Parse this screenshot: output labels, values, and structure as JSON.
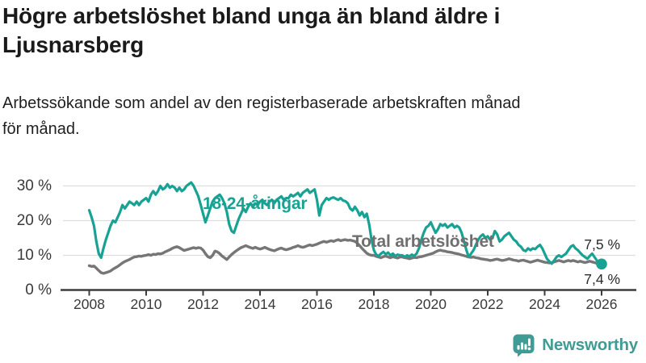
{
  "header": {
    "title_lines": [
      "Högre arbetslöshet bland unga än bland äldre i",
      "Ljusnarsberg"
    ],
    "subtitle_lines": [
      "Arbetssökande som andel av den registerbaserade arbetskraften månad",
      "för månad."
    ]
  },
  "annotations": {
    "youth_label": "18-24-åringar",
    "total_label": "Total arbetslöshet",
    "youth_end_value": "7,5 %",
    "total_end_value": "7,4 %"
  },
  "footer": {
    "brand": "Newsworthy",
    "logo_icon": "bar-chart-speech-bubble-icon",
    "brand_color": "#3f9c95"
  },
  "chart_data": {
    "type": "line",
    "unit": "%",
    "x_start_year": 2008,
    "x_end_year": 2026,
    "points_per_year": 12,
    "x_tick_labels": [
      "2008",
      "2010",
      "2012",
      "2014",
      "2016",
      "2018",
      "2020",
      "2022",
      "2024",
      "2026"
    ],
    "y_tick_labels": [
      "0 %",
      "10 %",
      "20 %",
      "30 %"
    ],
    "ylim": [
      0,
      32
    ],
    "grid": "horizontal",
    "series": [
      {
        "name": "18-24-åringar",
        "color": "#17a293",
        "end_label": "7,5 %",
        "end_dot": true,
        "values": [
          23.0,
          21.0,
          18.5,
          14.0,
          10.5,
          9.3,
          12.0,
          14.5,
          16.5,
          18.5,
          20.0,
          19.5,
          21.0,
          22.5,
          24.5,
          23.5,
          24.5,
          25.5,
          25.0,
          24.5,
          25.5,
          24.5,
          25.5,
          26.0,
          26.5,
          25.5,
          27.5,
          28.5,
          27.5,
          28.5,
          30.0,
          29.0,
          29.5,
          30.5,
          29.5,
          30.0,
          29.5,
          28.5,
          29.5,
          28.5,
          29.0,
          30.0,
          30.5,
          31.0,
          30.0,
          28.5,
          27.0,
          24.5,
          22.0,
          19.5,
          21.5,
          23.5,
          25.5,
          26.5,
          27.0,
          27.5,
          26.5,
          25.0,
          22.5,
          19.0,
          17.0,
          16.5,
          18.5,
          20.5,
          22.0,
          23.5,
          22.5,
          24.0,
          25.0,
          24.0,
          25.0,
          24.5,
          25.5,
          26.0,
          25.0,
          24.5,
          25.5,
          26.0,
          25.0,
          26.0,
          26.5,
          27.0,
          26.0,
          26.5,
          26.5,
          27.5,
          27.0,
          27.5,
          28.0,
          27.0,
          28.0,
          28.5,
          29.0,
          28.0,
          28.5,
          29.0,
          26.0,
          21.5,
          24.5,
          25.5,
          26.5,
          26.0,
          26.5,
          26.7,
          26.3,
          26.0,
          26.5,
          25.8,
          25.6,
          25.0,
          23.5,
          22.9,
          24.0,
          23.0,
          21.5,
          22.5,
          21.0,
          22.0,
          19.0,
          14.5,
          11.5,
          10.2,
          9.8,
          10.5,
          11.0,
          10.3,
          10.8,
          10.0,
          10.5,
          9.8,
          10.2,
          10.0,
          10.0,
          9.5,
          10.0,
          9.7,
          10.2,
          9.8,
          10.5,
          12.0,
          14.5,
          16.5,
          18.0,
          18.5,
          19.5,
          18.0,
          16.5,
          17.5,
          19.0,
          18.5,
          19.0,
          18.0,
          18.5,
          19.0,
          18.0,
          18.5,
          18.0,
          16.5,
          14.0,
          11.5,
          9.5,
          10.5,
          11.5,
          13.0,
          14.5,
          15.5,
          16.0,
          15.0,
          15.5,
          14.5,
          15.0,
          17.0,
          16.0,
          14.0,
          14.5,
          15.5,
          16.0,
          16.5,
          15.5,
          14.5,
          14.0,
          13.0,
          12.5,
          11.5,
          11.2,
          12.0,
          11.5,
          12.0,
          11.8,
          12.5,
          13.0,
          12.0,
          10.5,
          9.0,
          8.2,
          7.6,
          8.5,
          9.5,
          10.0,
          9.5,
          10.0,
          10.5,
          11.5,
          12.5,
          12.9,
          12.0,
          11.5,
          10.7,
          10.0,
          9.5,
          9.0,
          9.8,
          10.5,
          9.5,
          8.5,
          8.0,
          7.5
        ]
      },
      {
        "name": "Total arbetslöshet",
        "color": "#767676",
        "end_label": "7,4 %",
        "end_dot": false,
        "values": [
          7.0,
          6.8,
          6.9,
          6.3,
          5.6,
          5.0,
          4.8,
          5.0,
          5.2,
          5.5,
          6.0,
          6.4,
          6.8,
          7.3,
          7.8,
          8.2,
          8.5,
          8.8,
          9.2,
          9.5,
          9.6,
          9.8,
          9.7,
          9.9,
          10.0,
          10.2,
          10.0,
          10.3,
          10.2,
          10.5,
          10.4,
          10.6,
          11.0,
          11.3,
          11.6,
          12.0,
          12.3,
          12.5,
          12.2,
          11.8,
          11.4,
          11.6,
          11.8,
          12.0,
          12.2,
          12.0,
          12.2,
          12.1,
          11.5,
          10.5,
          9.6,
          9.3,
          10.0,
          11.2,
          11.0,
          10.5,
          9.8,
          9.3,
          8.8,
          9.5,
          10.2,
          10.8,
          11.3,
          11.8,
          12.2,
          12.5,
          12.8,
          12.5,
          12.2,
          12.0,
          12.3,
          12.0,
          11.8,
          12.0,
          12.3,
          12.0,
          11.7,
          11.5,
          11.3,
          11.6,
          11.9,
          12.1,
          11.8,
          11.6,
          11.8,
          12.0,
          12.3,
          12.5,
          12.8,
          12.5,
          12.3,
          12.5,
          12.8,
          13.0,
          12.8,
          13.0,
          13.2,
          13.5,
          13.8,
          14.0,
          13.8,
          14.0,
          14.2,
          14.0,
          14.3,
          14.5,
          14.2,
          14.4,
          14.5,
          14.3,
          14.4,
          14.2,
          14.0,
          13.5,
          12.8,
          12.0,
          11.3,
          10.6,
          10.2,
          10.0,
          10.0,
          9.7,
          9.5,
          9.3,
          9.6,
          9.8,
          9.5,
          9.3,
          9.6,
          9.4,
          9.2,
          9.5,
          9.5,
          9.3,
          9.2,
          9.0,
          9.2,
          9.4,
          9.3,
          9.5,
          9.6,
          9.8,
          10.0,
          10.2,
          10.4,
          10.6,
          11.0,
          11.3,
          11.5,
          11.3,
          11.2,
          11.0,
          10.9,
          10.8,
          10.6,
          10.5,
          10.3,
          10.1,
          9.9,
          9.7,
          9.5,
          9.4,
          9.5,
          9.3,
          9.2,
          9.0,
          8.9,
          8.8,
          8.7,
          8.5,
          8.6,
          8.8,
          8.9,
          8.7,
          8.5,
          8.6,
          8.8,
          9.0,
          8.8,
          8.6,
          8.5,
          8.3,
          8.5,
          8.6,
          8.4,
          8.2,
          8.0,
          8.2,
          8.4,
          8.6,
          8.4,
          8.2,
          8.0,
          7.9,
          7.8,
          7.9,
          8.1,
          8.3,
          8.5,
          8.3,
          8.1,
          8.3,
          8.5,
          8.3,
          8.5,
          8.3,
          8.1,
          8.3,
          8.1,
          7.9,
          8.1,
          8.3,
          8.1,
          7.9,
          7.7,
          7.5,
          7.4
        ]
      }
    ]
  }
}
